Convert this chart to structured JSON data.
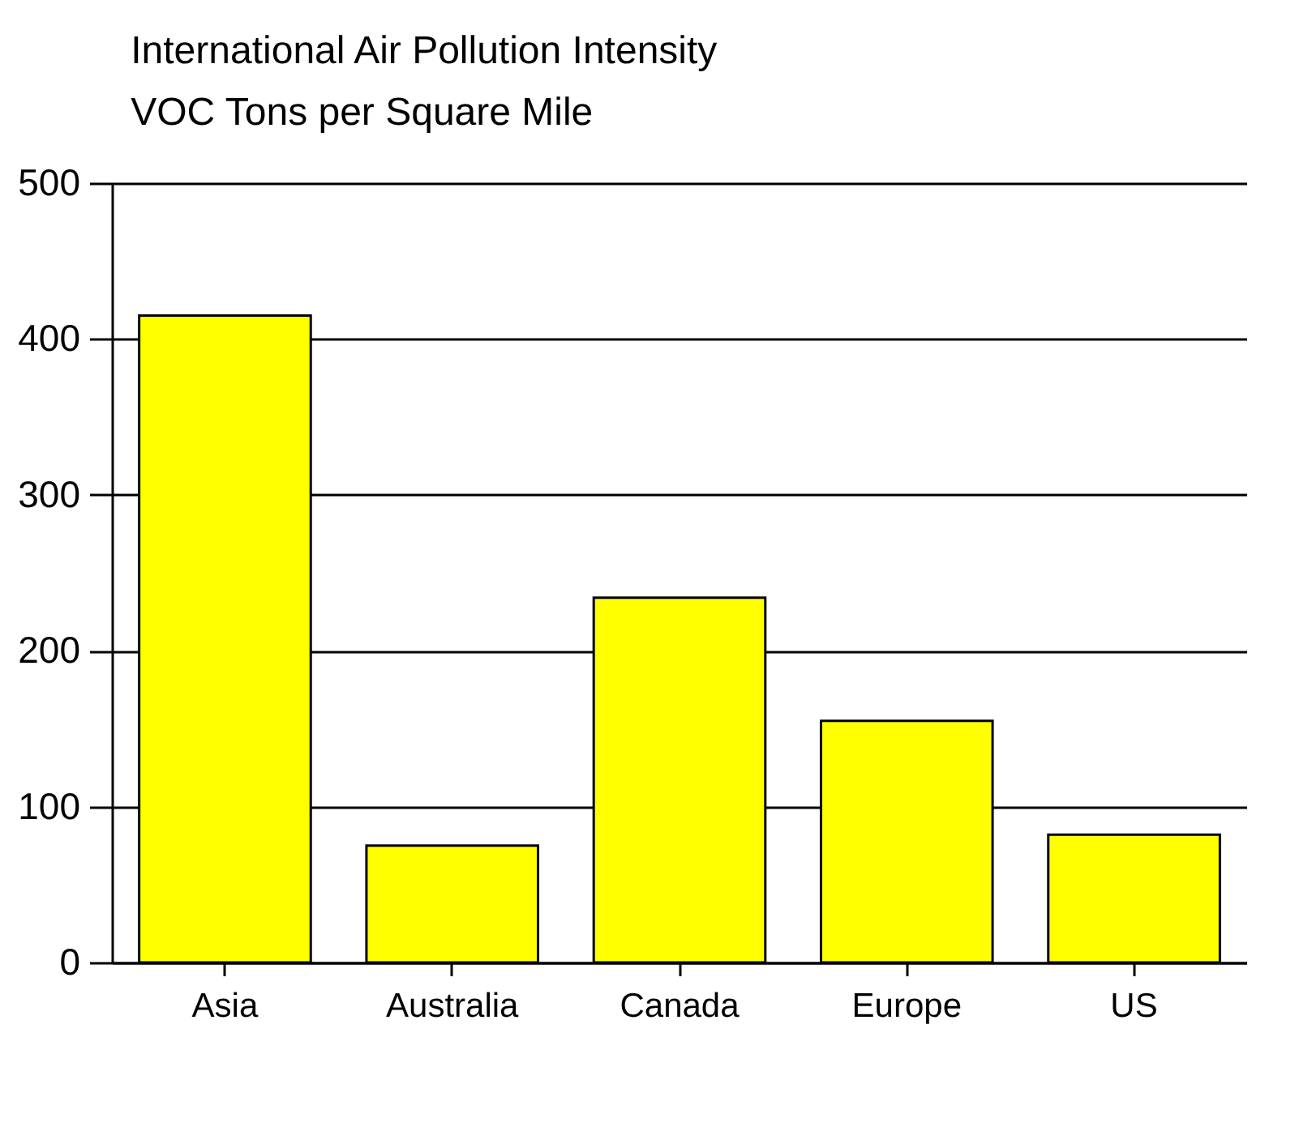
{
  "chart_data": {
    "type": "bar",
    "title": "International Air Pollution Intensity",
    "subtitle": "VOC Tons per Square Mile",
    "categories": [
      "Asia",
      "Australia",
      "Canada",
      "Europe",
      "US"
    ],
    "values": [
      415,
      75,
      234,
      155,
      82
    ],
    "color": "#ffff00",
    "ylim": [
      0,
      500
    ],
    "yticks": [
      0,
      100,
      200,
      300,
      400,
      500
    ],
    "grid": "y"
  }
}
